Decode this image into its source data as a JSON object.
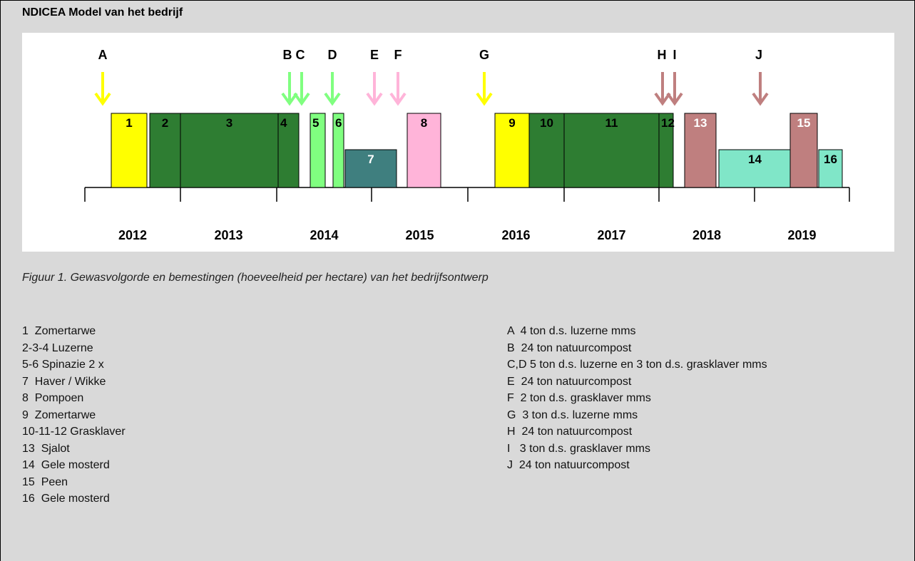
{
  "header": {
    "title": "NDICEA Model van het bedrijf"
  },
  "figure": {
    "years": [
      "2012",
      "2013",
      "2014",
      "2015",
      "2016",
      "2017",
      "2018",
      "2019"
    ],
    "crops": [
      "1",
      "2",
      "3",
      "4",
      "5",
      "6",
      "7",
      "8",
      "9",
      "10",
      "11",
      "12",
      "13",
      "14",
      "15",
      "16"
    ],
    "fertilizations": [
      "A",
      "B",
      "C",
      "D",
      "E",
      "F",
      "G",
      "H",
      "I",
      "J"
    ]
  },
  "caption": "Figuur 1.  Gewasvolgorde en bemestingen (hoeveelheid per hectare) van het bedrijfsontwerp",
  "legend": {
    "crops": [
      "1  Zomertarwe",
      "2-3-4 Luzerne",
      "5-6 Spinazie 2 x",
      "7  Haver / Wikke",
      "8  Pompoen",
      "9  Zomertarwe",
      "10-11-12 Grasklaver",
      "13  Sjalot",
      "14  Gele mosterd",
      "15  Peen",
      "16  Gele mosterd"
    ],
    "fertilizations": [
      "A  4 ton d.s. luzerne mms",
      "B  24 ton natuurcompost",
      "C,D 5 ton d.s. luzerne en 3 ton d.s. grasklaver mms",
      "E  24 ton natuurcompost",
      "F  2 ton d.s. grasklaver mms",
      "G  3 ton d.s. luzerne mms",
      "H  24 ton natuurcompost",
      "I   3 ton d.s. grasklaver mms",
      "J  24 ton natuurcompost"
    ]
  }
}
